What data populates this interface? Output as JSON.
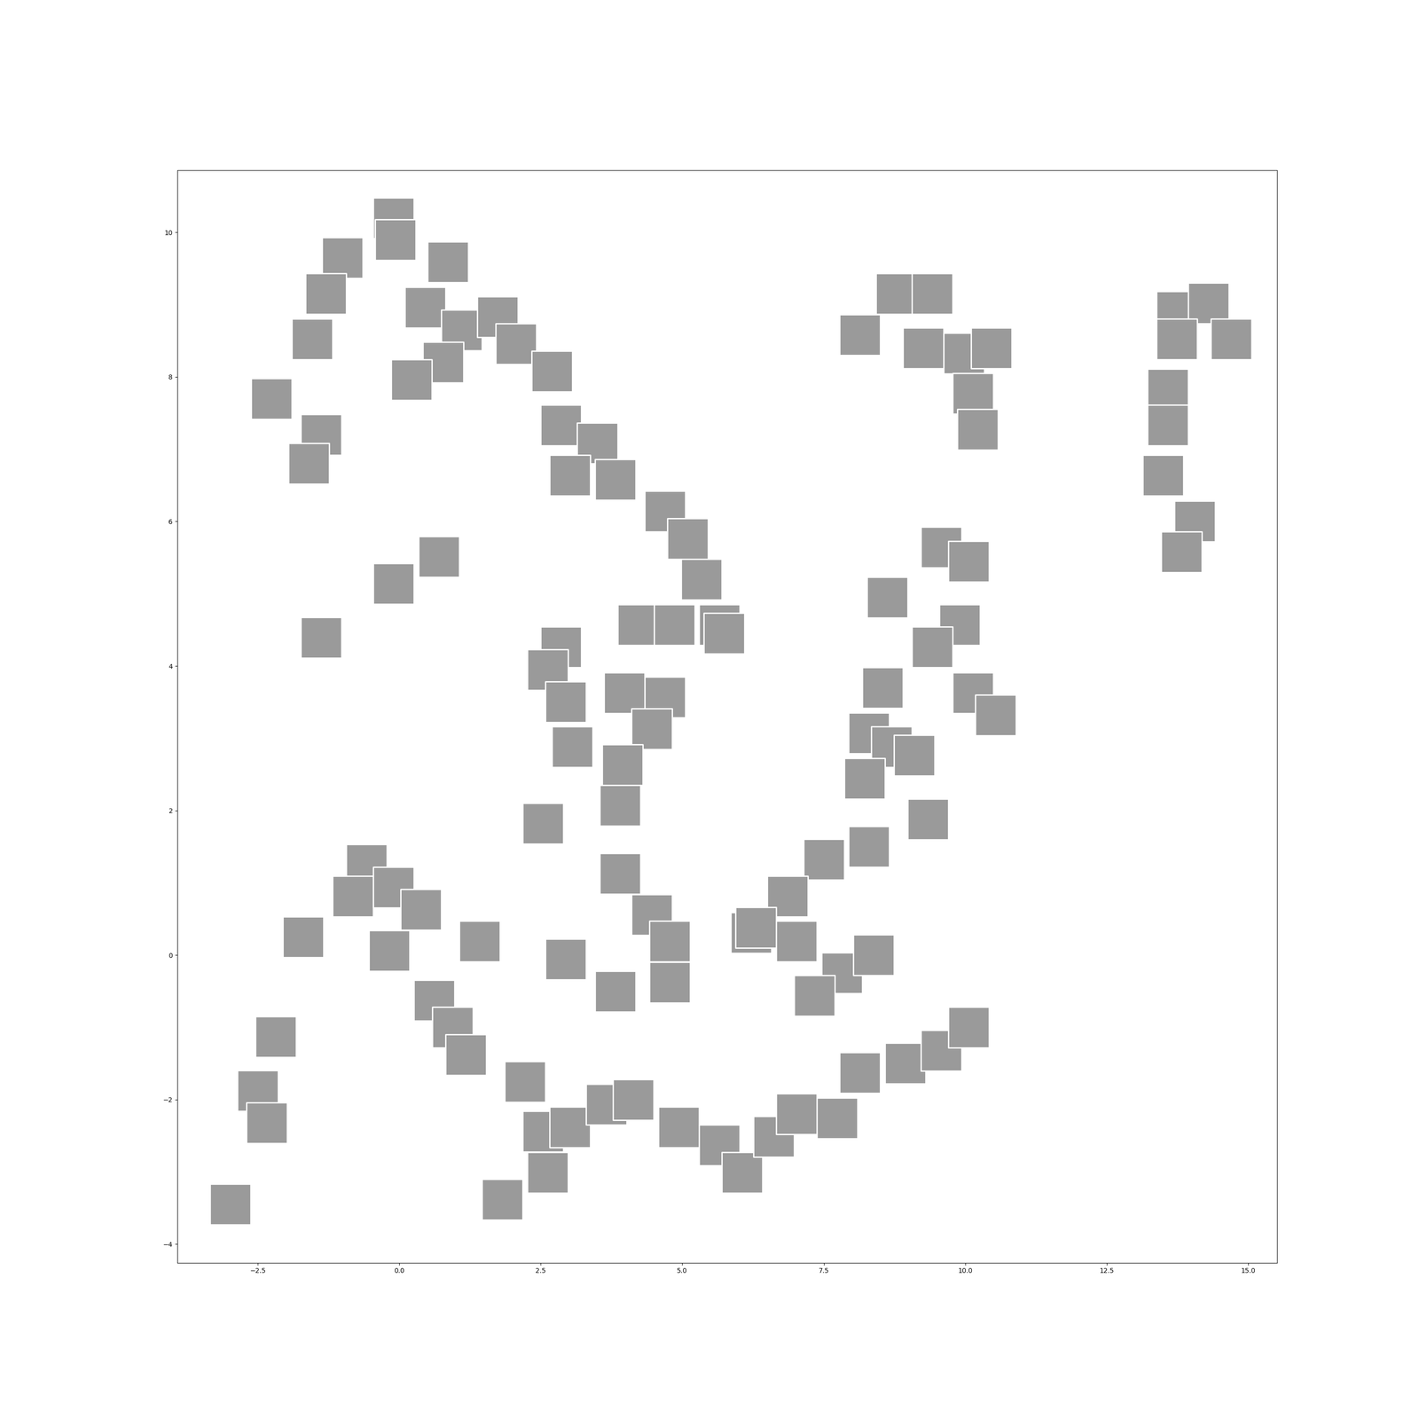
{
  "chart_data": {
    "type": "scatter",
    "x": [
      -0.1,
      -0.07,
      -1.0,
      -1.3,
      -1.54,
      -2.26,
      -1.38,
      -1.6,
      0.86,
      0.46,
      1.1,
      1.74,
      0.78,
      0.22,
      2.06,
      2.7,
      2.86,
      3.5,
      3.02,
      3.82,
      4.7,
      5.1,
      5.34,
      0.7,
      -0.1,
      -1.38,
      4.22,
      4.86,
      5.66,
      2.86,
      2.62,
      4.7,
      3.98,
      2.94,
      4.46,
      3.06,
      3.94,
      2.54,
      3.9,
      3.9,
      4.46,
      5.74,
      9.58,
      10.06,
      8.62,
      9.9,
      9.42,
      10.14,
      10.54,
      8.54,
      8.3,
      8.7,
      9.1,
      8.22,
      9.34,
      8.3,
      7.5,
      6.86,
      6.22,
      8.14,
      8.78,
      9.42,
      9.26,
      9.98,
      10.46,
      10.14,
      10.22,
      13.74,
      14.3,
      13.74,
      13.58,
      13.58,
      13.5,
      14.06,
      13.82,
      14.7,
      -0.58,
      -0.82,
      -0.1,
      0.38,
      -1.7,
      -0.18,
      1.42,
      2.94,
      3.82,
      4.78,
      4.78,
      6.3,
      7.02,
      7.82,
      8.38,
      7.34,
      0.62,
      0.94,
      1.18,
      2.22,
      2.54,
      3.02,
      3.66,
      4.14,
      4.94,
      5.66,
      6.06,
      6.62,
      7.02,
      7.74,
      8.14,
      8.94,
      9.58,
      10.06,
      1.82,
      2.62,
      -2.18,
      -2.5,
      -2.34,
      -2.98
    ],
    "values": [
      10.2,
      9.9,
      9.65,
      9.15,
      8.52,
      7.7,
      7.2,
      6.8,
      9.59,
      8.96,
      8.65,
      8.83,
      8.2,
      7.96,
      8.46,
      8.08,
      7.33,
      7.08,
      6.64,
      6.58,
      6.14,
      5.76,
      5.2,
      5.51,
      5.14,
      4.39,
      4.57,
      4.57,
      4.57,
      4.26,
      3.95,
      3.57,
      3.63,
      3.5,
      3.13,
      2.88,
      2.63,
      1.82,
      2.07,
      1.13,
      0.56,
      4.45,
      5.64,
      5.45,
      4.95,
      4.57,
      4.26,
      3.63,
      3.32,
      3.7,
      3.07,
      2.88,
      2.76,
      2.44,
      1.88,
      1.5,
      1.32,
      0.81,
      0.31,
      8.58,
      9.15,
      9.15,
      8.4,
      8.33,
      8.4,
      7.77,
      7.27,
      8.9,
      9.02,
      8.52,
      7.83,
      7.33,
      6.64,
      6.0,
      5.58,
      8.52,
      1.25,
      0.81,
      0.94,
      0.63,
      0.25,
      0.06,
      0.19,
      -0.06,
      -0.5,
      -0.38,
      0.19,
      0.38,
      0.19,
      -0.25,
      0.0,
      -0.56,
      -0.63,
      -1.0,
      -1.38,
      -1.75,
      -2.44,
      -2.38,
      -2.07,
      -2.0,
      -2.38,
      -2.63,
      -3.01,
      -2.51,
      -2.2,
      -2.26,
      -1.63,
      -1.5,
      -1.32,
      -1.0,
      -3.38,
      -3.01,
      -1.13,
      -1.88,
      -2.32,
      -3.45
    ],
    "color": "#9a9a9a",
    "marker": "s",
    "xlim": [
      -3.92,
      15.51
    ],
    "xticks": [
      {
        "value": -2.5,
        "label": "−2.5"
      },
      {
        "value": 0.0,
        "label": "0.0"
      },
      {
        "value": 2.5,
        "label": "2.5"
      },
      {
        "value": 5.0,
        "label": "5.0"
      },
      {
        "value": 7.5,
        "label": "7.5"
      },
      {
        "value": 10.0,
        "label": "10.0"
      },
      {
        "value": 12.5,
        "label": "12.5"
      },
      {
        "value": 15.0,
        "label": "15.0"
      }
    ],
    "ylim": [
      -4.26,
      10.86
    ],
    "yticks": [
      {
        "value": -4,
        "label": "−4"
      },
      {
        "value": -2,
        "label": "−2"
      },
      0,
      2,
      4,
      6,
      8,
      10
    ],
    "grid": false
  }
}
